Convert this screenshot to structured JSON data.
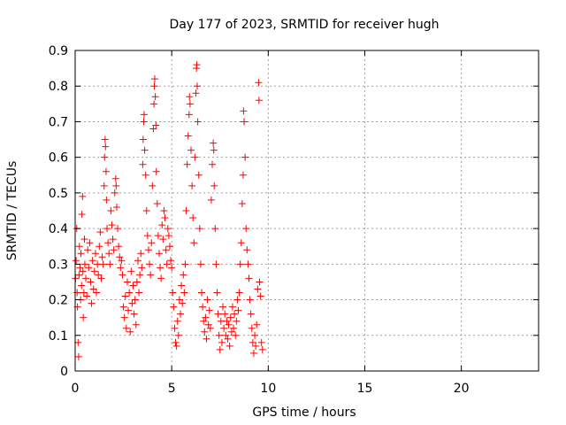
{
  "chart_data": {
    "type": "scatter",
    "title": "Day 177 of 2023, SRMTID for receiver hugh",
    "xlabel": "GPS time / hours",
    "ylabel": "SRMTID / TECUs",
    "xlim": [
      0,
      24
    ],
    "ylim": [
      0,
      0.9
    ],
    "xticks": [
      0,
      5,
      10,
      15,
      20
    ],
    "xtick_labels": [
      "0",
      "5",
      "10",
      "15",
      "20"
    ],
    "yticks": [
      0,
      0.1,
      0.2,
      0.3,
      0.4,
      0.5,
      0.6,
      0.7,
      0.8,
      0.9
    ],
    "ytick_labels": [
      "0",
      "0.1",
      "0.2",
      "0.3",
      "0.4",
      "0.5",
      "0.6",
      "0.7",
      "0.8",
      "0.9"
    ],
    "grid": true,
    "marker": "+",
    "color": "#ff0000",
    "series": [
      {
        "name": "SRMTID",
        "points": [
          [
            0.02,
            0.26
          ],
          [
            0.05,
            0.31
          ],
          [
            0.08,
            0.4
          ],
          [
            0.1,
            0.22
          ],
          [
            0.12,
            0.18
          ],
          [
            0.15,
            0.08
          ],
          [
            0.18,
            0.04
          ],
          [
            0.2,
            0.27
          ],
          [
            0.22,
            0.35
          ],
          [
            0.25,
            0.29
          ],
          [
            0.28,
            0.2
          ],
          [
            0.3,
            0.33
          ],
          [
            0.33,
            0.24
          ],
          [
            0.35,
            0.44
          ],
          [
            0.38,
            0.49
          ],
          [
            0.4,
            0.28
          ],
          [
            0.42,
            0.15
          ],
          [
            0.45,
            0.22
          ],
          [
            0.48,
            0.37
          ],
          [
            0.5,
            0.3
          ],
          [
            0.55,
            0.26
          ],
          [
            0.6,
            0.21
          ],
          [
            0.65,
            0.34
          ],
          [
            0.7,
            0.29
          ],
          [
            0.75,
            0.36
          ],
          [
            0.8,
            0.25
          ],
          [
            0.85,
            0.19
          ],
          [
            0.9,
            0.31
          ],
          [
            0.95,
            0.23
          ],
          [
            1.0,
            0.28
          ],
          [
            1.05,
            0.33
          ],
          [
            1.1,
            0.22
          ],
          [
            1.15,
            0.3
          ],
          [
            1.2,
            0.27
          ],
          [
            1.25,
            0.35
          ],
          [
            1.3,
            0.39
          ],
          [
            1.35,
            0.26
          ],
          [
            1.4,
            0.32
          ],
          [
            1.45,
            0.3
          ],
          [
            1.5,
            0.52
          ],
          [
            1.52,
            0.6
          ],
          [
            1.55,
            0.65
          ],
          [
            1.57,
            0.63
          ],
          [
            1.6,
            0.56
          ],
          [
            1.62,
            0.48
          ],
          [
            1.65,
            0.4
          ],
          [
            1.7,
            0.36
          ],
          [
            1.75,
            0.33
          ],
          [
            1.8,
            0.3
          ],
          [
            1.85,
            0.45
          ],
          [
            1.9,
            0.41
          ],
          [
            1.95,
            0.37
          ],
          [
            2.0,
            0.34
          ],
          [
            2.05,
            0.5
          ],
          [
            2.1,
            0.54
          ],
          [
            2.12,
            0.52
          ],
          [
            2.15,
            0.46
          ],
          [
            2.2,
            0.4
          ],
          [
            2.25,
            0.35
          ],
          [
            2.3,
            0.32
          ],
          [
            2.35,
            0.29
          ],
          [
            2.4,
            0.31
          ],
          [
            2.45,
            0.27
          ],
          [
            2.5,
            0.18
          ],
          [
            2.55,
            0.15
          ],
          [
            2.6,
            0.21
          ],
          [
            2.65,
            0.12
          ],
          [
            2.7,
            0.25
          ],
          [
            2.75,
            0.17
          ],
          [
            2.8,
            0.22
          ],
          [
            2.85,
            0.11
          ],
          [
            2.9,
            0.28
          ],
          [
            2.95,
            0.19
          ],
          [
            3.0,
            0.24
          ],
          [
            3.05,
            0.16
          ],
          [
            3.1,
            0.2
          ],
          [
            3.15,
            0.13
          ],
          [
            3.2,
            0.25
          ],
          [
            3.25,
            0.31
          ],
          [
            3.3,
            0.22
          ],
          [
            3.35,
            0.27
          ],
          [
            3.4,
            0.33
          ],
          [
            3.45,
            0.29
          ],
          [
            3.5,
            0.58
          ],
          [
            3.52,
            0.65
          ],
          [
            3.55,
            0.7
          ],
          [
            3.57,
            0.72
          ],
          [
            3.6,
            0.62
          ],
          [
            3.65,
            0.55
          ],
          [
            3.7,
            0.45
          ],
          [
            3.75,
            0.38
          ],
          [
            3.8,
            0.34
          ],
          [
            3.85,
            0.3
          ],
          [
            3.9,
            0.27
          ],
          [
            3.95,
            0.36
          ],
          [
            4.0,
            0.52
          ],
          [
            4.05,
            0.68
          ],
          [
            4.08,
            0.75
          ],
          [
            4.1,
            0.8
          ],
          [
            4.12,
            0.82
          ],
          [
            4.15,
            0.77
          ],
          [
            4.18,
            0.69
          ],
          [
            4.2,
            0.56
          ],
          [
            4.25,
            0.47
          ],
          [
            4.3,
            0.38
          ],
          [
            4.35,
            0.33
          ],
          [
            4.4,
            0.29
          ],
          [
            4.45,
            0.26
          ],
          [
            4.5,
            0.41
          ],
          [
            4.55,
            0.37
          ],
          [
            4.6,
            0.45
          ],
          [
            4.65,
            0.43
          ],
          [
            4.7,
            0.34
          ],
          [
            4.75,
            0.3
          ],
          [
            4.8,
            0.4
          ],
          [
            4.85,
            0.38
          ],
          [
            4.9,
            0.35
          ],
          [
            4.95,
            0.31
          ],
          [
            5.0,
            0.29
          ],
          [
            5.05,
            0.22
          ],
          [
            5.1,
            0.18
          ],
          [
            5.15,
            0.12
          ],
          [
            5.2,
            0.08
          ],
          [
            5.25,
            0.07
          ],
          [
            5.3,
            0.14
          ],
          [
            5.35,
            0.1
          ],
          [
            5.4,
            0.2
          ],
          [
            5.45,
            0.16
          ],
          [
            5.5,
            0.24
          ],
          [
            5.55,
            0.19
          ],
          [
            5.6,
            0.27
          ],
          [
            5.65,
            0.22
          ],
          [
            5.7,
            0.3
          ],
          [
            5.75,
            0.45
          ],
          [
            5.8,
            0.58
          ],
          [
            5.85,
            0.66
          ],
          [
            5.9,
            0.72
          ],
          [
            5.92,
            0.77
          ],
          [
            5.95,
            0.75
          ],
          [
            6.0,
            0.62
          ],
          [
            6.05,
            0.52
          ],
          [
            6.1,
            0.43
          ],
          [
            6.15,
            0.36
          ],
          [
            6.2,
            0.6
          ],
          [
            6.25,
            0.78
          ],
          [
            6.28,
            0.85
          ],
          [
            6.3,
            0.86
          ],
          [
            6.32,
            0.8
          ],
          [
            6.35,
            0.7
          ],
          [
            6.4,
            0.55
          ],
          [
            6.45,
            0.4
          ],
          [
            6.5,
            0.3
          ],
          [
            6.55,
            0.22
          ],
          [
            6.6,
            0.18
          ],
          [
            6.65,
            0.14
          ],
          [
            6.7,
            0.11
          ],
          [
            6.75,
            0.15
          ],
          [
            6.8,
            0.09
          ],
          [
            6.85,
            0.2
          ],
          [
            6.9,
            0.13
          ],
          [
            6.95,
            0.17
          ],
          [
            7.0,
            0.12
          ],
          [
            7.05,
            0.48
          ],
          [
            7.1,
            0.58
          ],
          [
            7.15,
            0.64
          ],
          [
            7.18,
            0.62
          ],
          [
            7.2,
            0.52
          ],
          [
            7.25,
            0.4
          ],
          [
            7.3,
            0.3
          ],
          [
            7.35,
            0.22
          ],
          [
            7.4,
            0.16
          ],
          [
            7.45,
            0.1
          ],
          [
            7.5,
            0.06
          ],
          [
            7.55,
            0.14
          ],
          [
            7.6,
            0.08
          ],
          [
            7.65,
            0.18
          ],
          [
            7.7,
            0.12
          ],
          [
            7.75,
            0.16
          ],
          [
            7.8,
            0.1
          ],
          [
            7.85,
            0.14
          ],
          [
            7.9,
            0.09
          ],
          [
            7.95,
            0.13
          ],
          [
            8.0,
            0.07
          ],
          [
            8.05,
            0.15
          ],
          [
            8.1,
            0.11
          ],
          [
            8.15,
            0.18
          ],
          [
            8.2,
            0.12
          ],
          [
            8.25,
            0.16
          ],
          [
            8.3,
            0.1
          ],
          [
            8.35,
            0.14
          ],
          [
            8.4,
            0.2
          ],
          [
            8.45,
            0.17
          ],
          [
            8.5,
            0.22
          ],
          [
            8.55,
            0.3
          ],
          [
            8.6,
            0.36
          ],
          [
            8.65,
            0.47
          ],
          [
            8.7,
            0.55
          ],
          [
            8.72,
            0.73
          ],
          [
            8.75,
            0.7
          ],
          [
            8.8,
            0.6
          ],
          [
            8.85,
            0.4
          ],
          [
            8.9,
            0.34
          ],
          [
            8.95,
            0.3
          ],
          [
            9.0,
            0.26
          ],
          [
            9.05,
            0.2
          ],
          [
            9.1,
            0.16
          ],
          [
            9.15,
            0.12
          ],
          [
            9.2,
            0.08
          ],
          [
            9.25,
            0.05
          ],
          [
            9.3,
            0.1
          ],
          [
            9.35,
            0.07
          ],
          [
            9.4,
            0.13
          ],
          [
            9.45,
            0.23
          ],
          [
            9.5,
            0.81
          ],
          [
            9.52,
            0.76
          ],
          [
            9.55,
            0.25
          ],
          [
            9.6,
            0.21
          ],
          [
            9.65,
            0.08
          ],
          [
            9.7,
            0.06
          ]
        ]
      }
    ]
  }
}
